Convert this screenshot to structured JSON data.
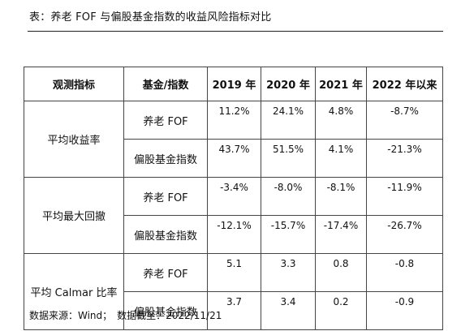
{
  "caption": "表：养老 FOF 与偏股基金指数的收益风险指标对比",
  "table": {
    "headers": [
      "观测指标",
      "基金/指数",
      "2019 年",
      "2020 年",
      "2021 年",
      "2022 年以来"
    ],
    "groups": [
      {
        "metric": "平均收益率",
        "rows": [
          {
            "series": "养老 FOF",
            "values": [
              "11.2%",
              "24.1%",
              "4.8%",
              "-8.7%"
            ]
          },
          {
            "series": "偏股基金指数",
            "values": [
              "43.7%",
              "51.5%",
              "4.1%",
              "-21.3%"
            ]
          }
        ]
      },
      {
        "metric": "平均最大回撤",
        "rows": [
          {
            "series": "养老 FOF",
            "values": [
              "-3.4%",
              "-8.0%",
              "-8.1%",
              "-11.9%"
            ]
          },
          {
            "series": "偏股基金指数",
            "values": [
              "-12.1%",
              "-15.7%",
              "-17.4%",
              "-26.7%"
            ]
          }
        ]
      },
      {
        "metric": "平均 Calmar 比率",
        "rows": [
          {
            "series": "养老 FOF",
            "values": [
              "5.1",
              "3.3",
              "0.8",
              "-0.8"
            ]
          },
          {
            "series": "偏股基金指数",
            "values": [
              "3.7",
              "3.4",
              "0.2",
              "-0.9"
            ]
          }
        ]
      }
    ]
  },
  "source": {
    "label": "数据来源：Wind；",
    "date": "数据截至：2022/11/21"
  }
}
